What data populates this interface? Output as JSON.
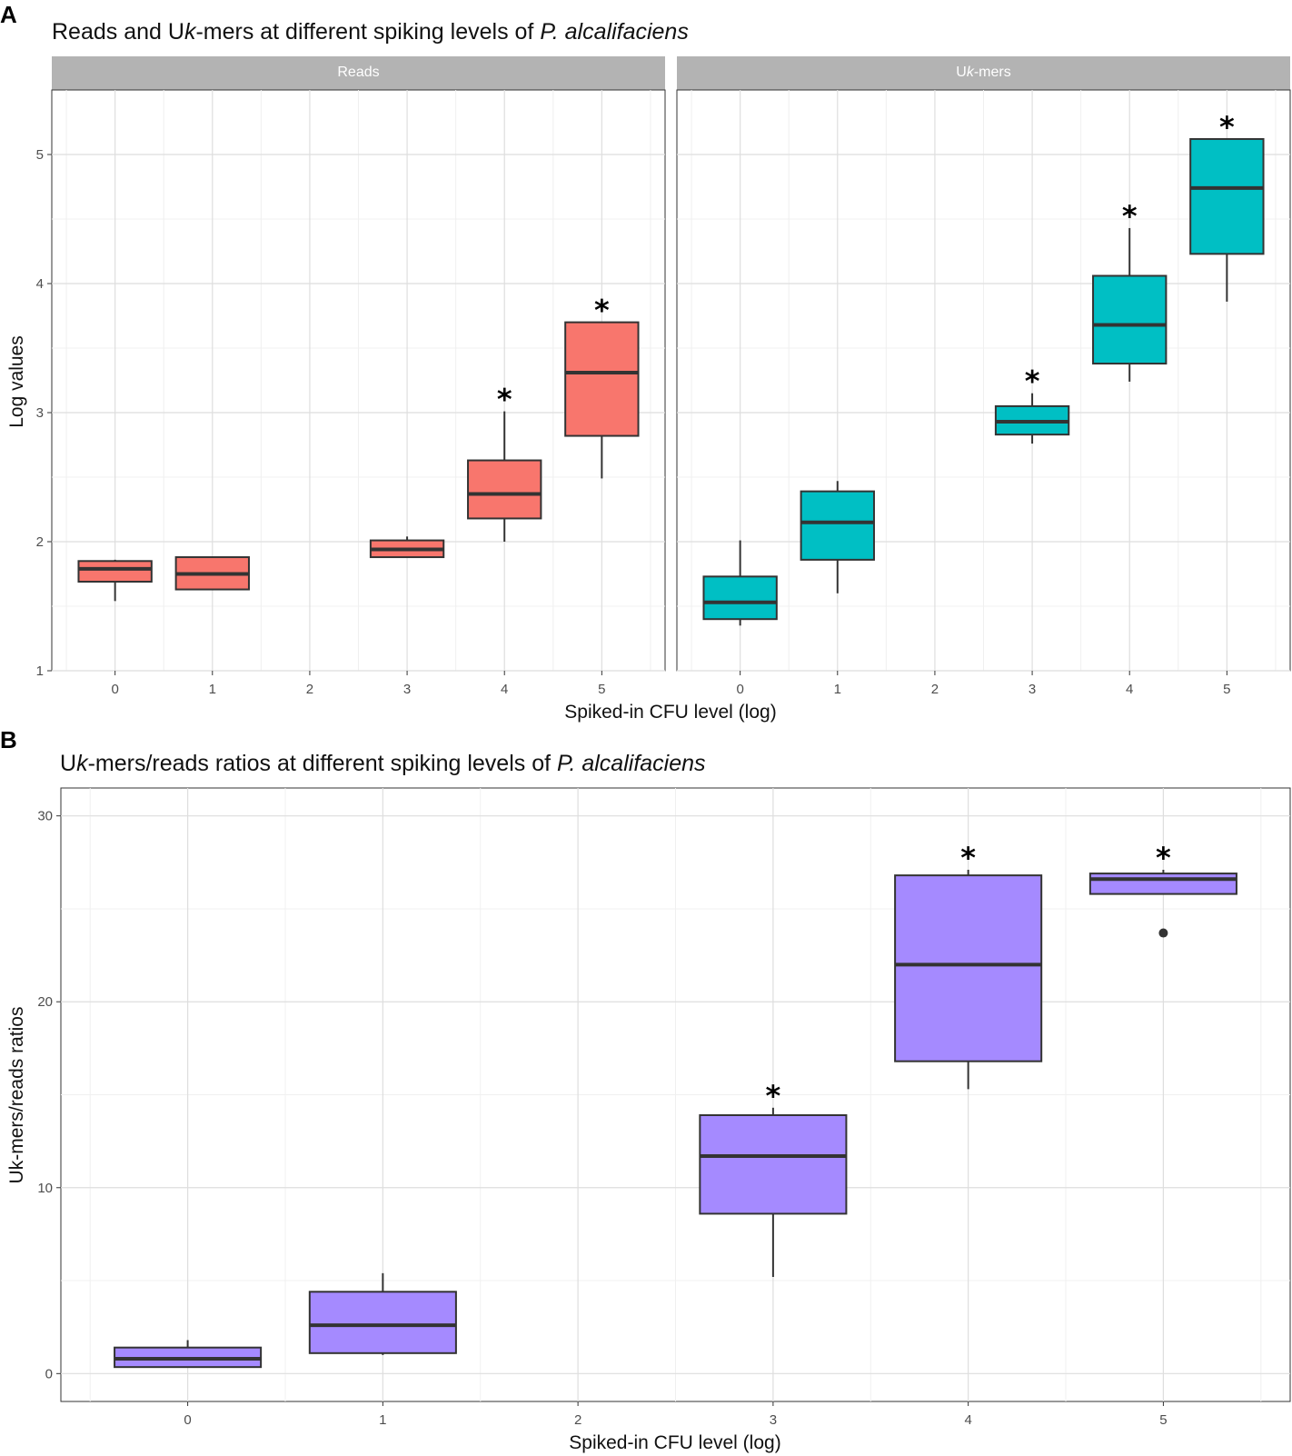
{
  "chart_data": [
    {
      "panel": "A",
      "type": "boxplot",
      "title_parts": [
        {
          "text": "Reads and U",
          "italic": false
        },
        {
          "text": "k",
          "italic": true
        },
        {
          "text": "-mers at different spiking levels of ",
          "italic": false
        },
        {
          "text": "P. alcalifaciens",
          "italic": true
        }
      ],
      "title": "Reads and Uk-mers at different spiking levels of P. alcalifaciens",
      "xlabel": "Spiked-in CFU level (log)",
      "ylabel": "Log values",
      "xlim": [
        -0.65,
        5.65
      ],
      "ylim": [
        1,
        5.5
      ],
      "xticks": [
        0,
        1,
        2,
        3,
        4,
        5
      ],
      "yticks": [
        1,
        2,
        3,
        4,
        5
      ],
      "grid": true,
      "facets": [
        {
          "label": "Reads",
          "color": "#F8766D",
          "boxes": [
            {
              "x": 0,
              "whislo": 1.54,
              "q1": 1.69,
              "med": 1.79,
              "q3": 1.85,
              "whishi": 1.86,
              "star": false
            },
            {
              "x": 1,
              "whislo": 1.63,
              "q1": 1.63,
              "med": 1.75,
              "q3": 1.88,
              "whishi": 1.88,
              "star": false
            },
            {
              "x": 3,
              "whislo": 1.88,
              "q1": 1.88,
              "med": 1.94,
              "q3": 2.01,
              "whishi": 2.04,
              "star": false
            },
            {
              "x": 4,
              "whislo": 2.0,
              "q1": 2.18,
              "med": 2.37,
              "q3": 2.63,
              "whishi": 3.01,
              "star": true
            },
            {
              "x": 5,
              "whislo": 2.49,
              "q1": 2.82,
              "med": 3.31,
              "q3": 3.7,
              "whishi": 3.7,
              "star": true
            }
          ]
        },
        {
          "label_parts": [
            {
              "text": "U",
              "italic": false
            },
            {
              "text": "k",
              "italic": true
            },
            {
              "text": "-mers",
              "italic": false
            }
          ],
          "label": "Uk-mers",
          "color": "#00BFC4",
          "boxes": [
            {
              "x": 0,
              "whislo": 1.35,
              "q1": 1.4,
              "med": 1.53,
              "q3": 1.73,
              "whishi": 2.01,
              "star": false
            },
            {
              "x": 1,
              "whislo": 1.6,
              "q1": 1.86,
              "med": 2.15,
              "q3": 2.39,
              "whishi": 2.47,
              "star": false
            },
            {
              "x": 3,
              "whislo": 2.76,
              "q1": 2.83,
              "med": 2.93,
              "q3": 3.05,
              "whishi": 3.15,
              "star": true
            },
            {
              "x": 4,
              "whislo": 3.24,
              "q1": 3.38,
              "med": 3.68,
              "q3": 4.06,
              "whishi": 4.43,
              "star": true
            },
            {
              "x": 5,
              "whislo": 3.86,
              "q1": 4.23,
              "med": 4.74,
              "q3": 5.12,
              "whishi": 5.12,
              "star": true
            }
          ]
        }
      ]
    },
    {
      "panel": "B",
      "type": "boxplot",
      "title_parts": [
        {
          "text": "U",
          "italic": false
        },
        {
          "text": "k",
          "italic": true
        },
        {
          "text": "-mers/reads ratios at different spiking levels of ",
          "italic": false
        },
        {
          "text": "P. alcalifaciens",
          "italic": true
        }
      ],
      "title": "Uk-mers/reads ratios at different spiking levels of P. alcalifaciens",
      "xlabel": "Spiked-in CFU level (log)",
      "ylabel": "Uk-mers/reads ratios",
      "xlim": [
        -0.65,
        5.65
      ],
      "ylim": [
        -1.5,
        31.5
      ],
      "xticks": [
        0,
        1,
        2,
        3,
        4,
        5
      ],
      "yticks": [
        0,
        10,
        20,
        30
      ],
      "grid": true,
      "color": "#A58AFF",
      "boxes": [
        {
          "x": 0,
          "whislo": 0.35,
          "q1": 0.35,
          "med": 0.8,
          "q3": 1.4,
          "whishi": 1.8,
          "star": false,
          "outliers": []
        },
        {
          "x": 1,
          "whislo": 1.0,
          "q1": 1.1,
          "med": 2.6,
          "q3": 4.4,
          "whishi": 5.4,
          "star": false,
          "outliers": []
        },
        {
          "x": 3,
          "whislo": 5.2,
          "q1": 8.6,
          "med": 11.7,
          "q3": 13.9,
          "whishi": 14.3,
          "star": true,
          "outliers": []
        },
        {
          "x": 4,
          "whislo": 15.3,
          "q1": 16.8,
          "med": 22.0,
          "q3": 26.8,
          "whishi": 27.1,
          "star": true,
          "outliers": []
        },
        {
          "x": 5,
          "whislo": 25.8,
          "q1": 25.8,
          "med": 26.6,
          "q3": 26.9,
          "whishi": 27.1,
          "star": true,
          "outliers": [
            23.7
          ]
        }
      ]
    }
  ]
}
